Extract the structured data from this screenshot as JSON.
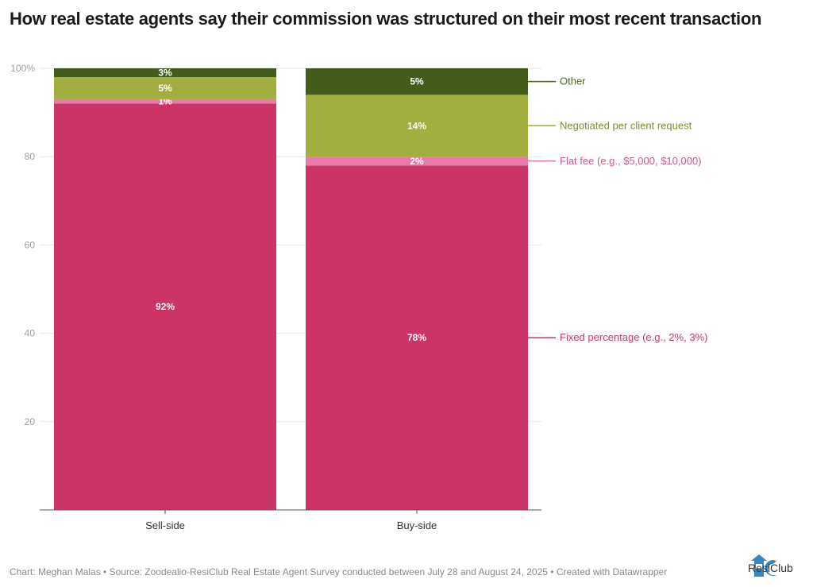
{
  "title": "How real estate agents say their commission was structured on their most recent transaction",
  "footer": "Chart: Meghan Malas • Source: Zoodealio-ResiClub Real Estate Agent Survey conducted between July 28 and August 24, 2025 • Created with Datawrapper",
  "logo": {
    "text": "ResiClub",
    "icon": "resiclub-logo-icon"
  },
  "chart_data": {
    "type": "bar",
    "stacked": true,
    "title": "How real estate agents say their commission was structured on their most recent transaction",
    "xlabel": "",
    "ylabel": "",
    "ylim": [
      0,
      100
    ],
    "yticks": [
      20,
      40,
      60,
      80,
      100
    ],
    "ytick_labels": [
      "20",
      "40",
      "60",
      "80",
      "100%"
    ],
    "grid": true,
    "legend": "right (direct labels)",
    "categories": [
      "Sell-side",
      "Buy-side"
    ],
    "series": [
      {
        "name": "Fixed percentage (e.g., 2%, 3%)",
        "color": "#cc3366",
        "values": [
          92,
          78
        ],
        "labels": [
          "92%",
          "78%"
        ]
      },
      {
        "name": "Flat fee (e.g., $5,000, $10,000)",
        "color": "#e87aac",
        "values": [
          1,
          2
        ],
        "labels": [
          "1%",
          "2%"
        ]
      },
      {
        "name": "Negotiated per client request",
        "color": "#a3ae41",
        "values": [
          5,
          14
        ],
        "labels": [
          "5%",
          "14%"
        ]
      },
      {
        "name": "Other",
        "color": "#435c1b",
        "values": [
          3,
          5
        ],
        "labels": [
          "3%",
          "5%"
        ]
      }
    ],
    "legend_label_colors": [
      "#c43a6c",
      "#c9588f",
      "#7d8c2f",
      "#4f6626"
    ]
  }
}
